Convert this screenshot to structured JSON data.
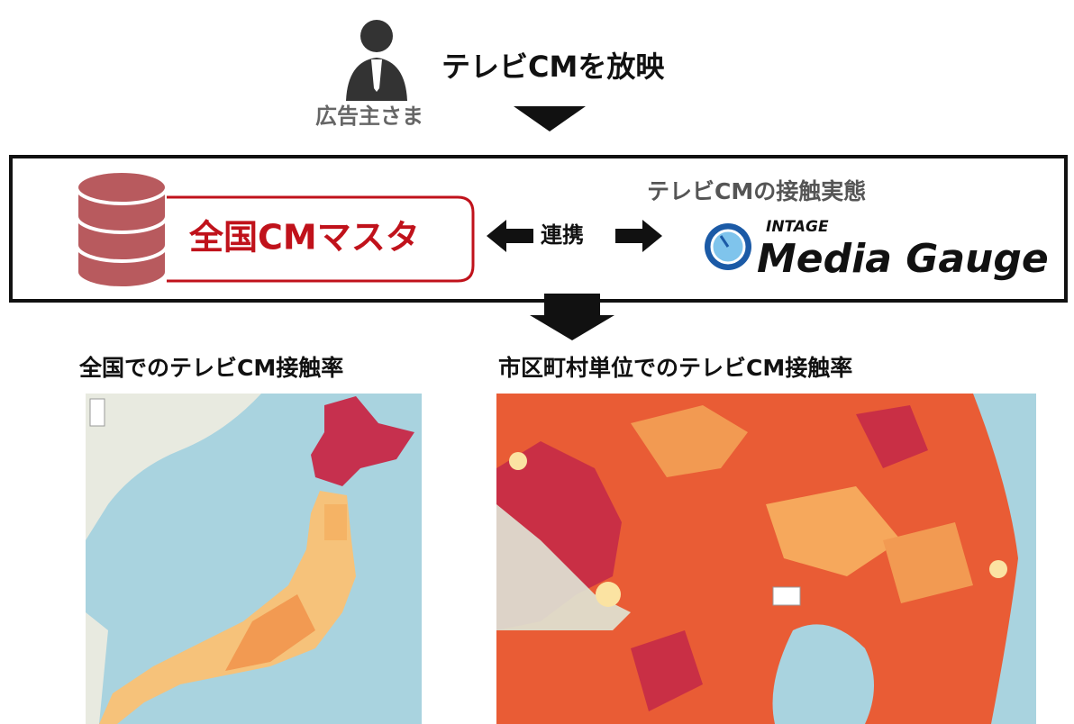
{
  "header": {
    "title": "テレビCMを放映",
    "actor": "広告主さま"
  },
  "flow": {
    "master": "全国CMマスタ",
    "link": "連携",
    "partner_caption": "テレビCMの接触実態",
    "logo_brand": "INTAGE",
    "logo_name": "Media Gauge"
  },
  "maps": [
    {
      "title": "全国でのテレビCM接触率"
    },
    {
      "title": "市区町村単位でのテレビCM接触率"
    }
  ]
}
